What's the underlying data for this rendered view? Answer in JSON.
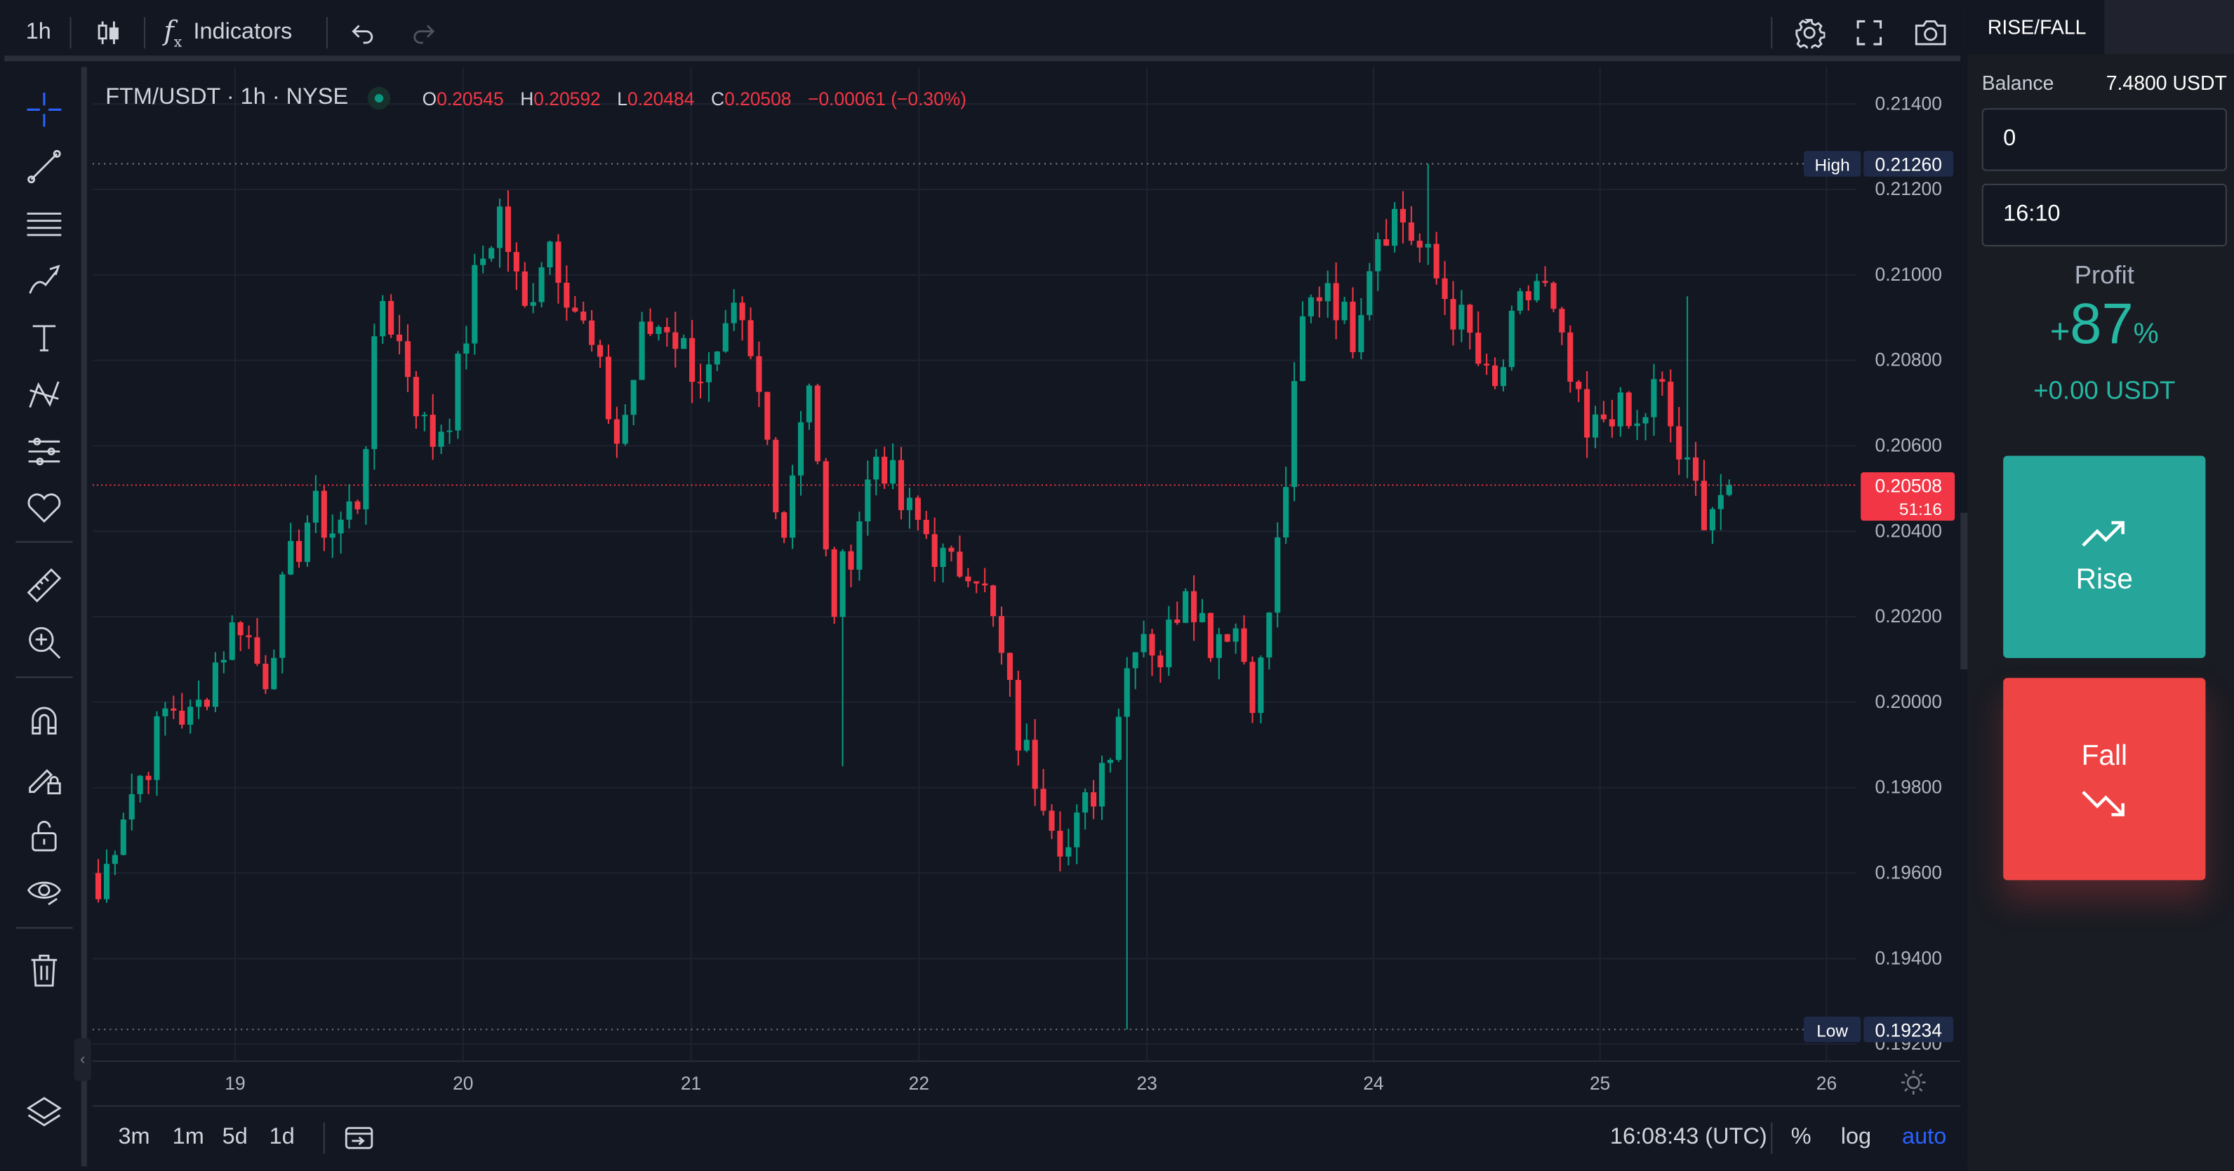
{
  "toolbar": {
    "interval": "1h",
    "indicators_label": "Indicators",
    "icons": [
      "candles-icon",
      "function-icon",
      "undo-icon",
      "redo-icon",
      "settings-icon",
      "fullscreen-icon",
      "camera-icon"
    ]
  },
  "legend": {
    "symbol": "FTM/USDT · 1h · NYSE",
    "open_key": "O",
    "open": "0.20545",
    "high_key": "H",
    "high": "0.20592",
    "low_key": "L",
    "low": "0.20484",
    "close_key": "C",
    "close": "0.20508",
    "change": "−0.00061 (−0.30%)"
  },
  "price_scale": {
    "ticks": [
      "0.21400",
      "0.21200",
      "0.21000",
      "0.20800",
      "0.20600",
      "0.20400",
      "0.20200",
      "0.20000",
      "0.19800",
      "0.19600",
      "0.19400",
      "0.19200"
    ],
    "high_label": "High",
    "high_value": "0.21260",
    "low_label": "Low",
    "low_value": "0.19234",
    "last_price": "0.20508",
    "countdown": "51:16"
  },
  "time_scale": {
    "ticks": [
      "19",
      "20",
      "21",
      "22",
      "23",
      "24",
      "25",
      "26"
    ]
  },
  "bottom_bar": {
    "ranges": [
      "3m",
      "1m",
      "5d",
      "1d"
    ],
    "clock": "16:08:43 (UTC)",
    "percent": "%",
    "log": "log",
    "auto": "auto"
  },
  "panel": {
    "tab": "RISE/FALL",
    "balance_label": "Balance",
    "balance_value": "7.4800 USDT",
    "amount_value": "0",
    "time_value": "16:10",
    "profit_label": "Profit",
    "profit_sign": "+",
    "profit_num": "87",
    "profit_pct": "%",
    "profit_usdt": "+0.00 USDT",
    "rise_label": "Rise",
    "fall_label": "Fall"
  },
  "colors": {
    "up": "#089981",
    "down": "#f23645",
    "background": "#131722",
    "accent": "#2962ff"
  },
  "chart_data": {
    "type": "candlestick",
    "symbol": "FTM/USDT",
    "interval": "1h",
    "x_ticks": [
      "19",
      "20",
      "21",
      "22",
      "23",
      "24",
      "25",
      "26"
    ],
    "y_ticks": [
      "0.21400",
      "0.21200",
      "0.21000",
      "0.20800",
      "0.20600",
      "0.20400",
      "0.20200",
      "0.20000",
      "0.19800",
      "0.19600",
      "0.19400",
      "0.19200"
    ],
    "ylim": [
      0.1916,
      0.2146
    ],
    "grid": true,
    "high": 0.2126,
    "low": 0.19234,
    "last": 0.20508,
    "anchors": [
      0.1954,
      0.1975,
      0.1985,
      0.2,
      0.1995,
      0.201,
      0.202,
      0.2005,
      0.203,
      0.2045,
      0.204,
      0.2048,
      0.2095,
      0.208,
      0.206,
      0.207,
      0.21,
      0.2115,
      0.209,
      0.211,
      0.2095,
      0.208,
      0.206,
      0.2085,
      0.209,
      0.208,
      0.2075,
      0.209,
      0.207,
      0.204,
      0.208,
      0.202,
      0.204,
      0.206,
      0.2045,
      0.204,
      0.203,
      0.2035,
      0.2015,
      0.199,
      0.198,
      0.1965,
      0.1978,
      0.1995,
      0.202,
      0.201,
      0.203,
      0.2015,
      0.202,
      0.2,
      0.204,
      0.209,
      0.21,
      0.2085,
      0.211,
      0.2115,
      0.2105,
      0.2095,
      0.2085,
      0.207,
      0.209,
      0.21,
      0.208,
      0.206,
      0.207,
      0.2062,
      0.2075,
      0.2055,
      0.2045,
      0.2051
    ]
  }
}
